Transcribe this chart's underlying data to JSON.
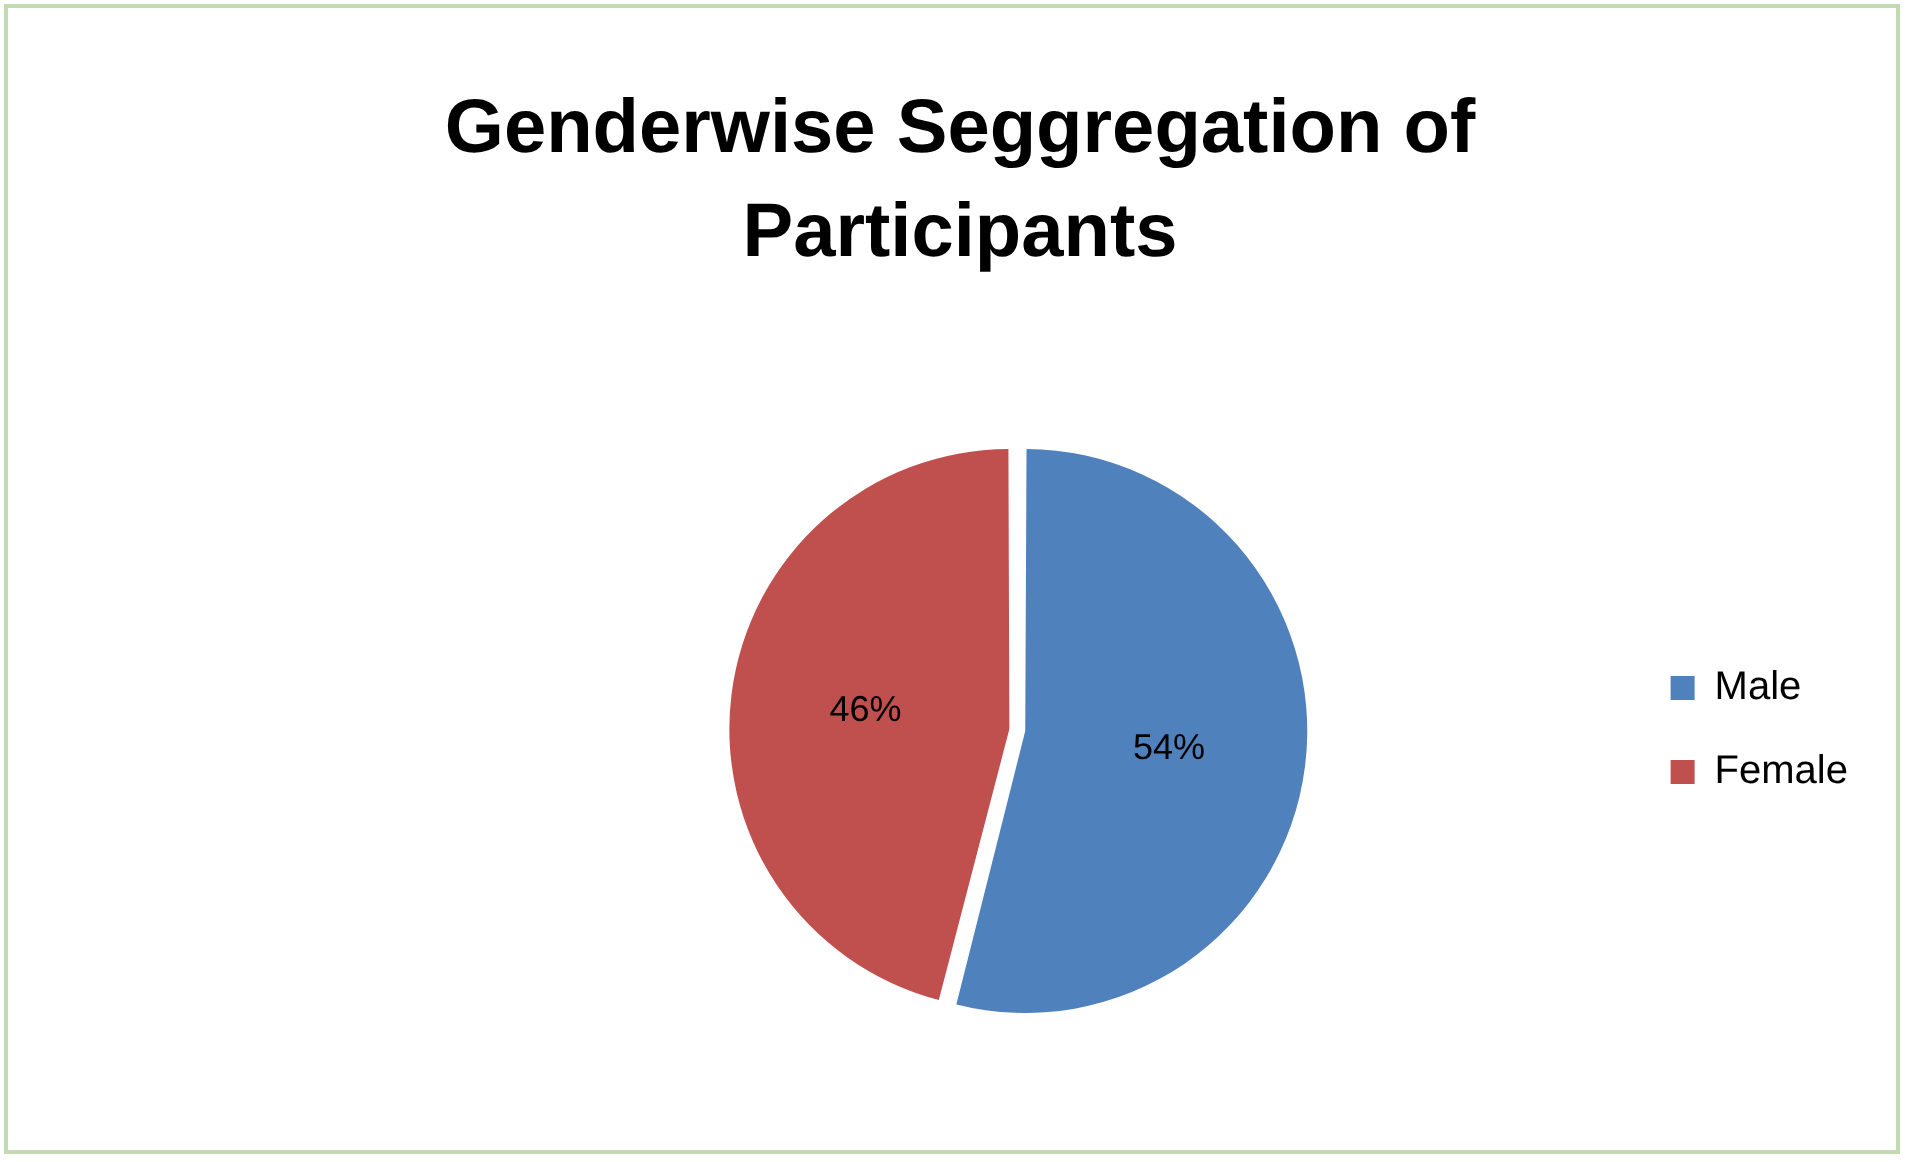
{
  "chart_data": {
    "type": "pie",
    "title": "Genderwise Seggregation of Participants",
    "categories": [
      "Male",
      "Female"
    ],
    "values": [
      54,
      46
    ],
    "colors": [
      "#4f81bd",
      "#c0504d"
    ],
    "value_labels": [
      "54%",
      "46%"
    ],
    "legend": "right"
  }
}
